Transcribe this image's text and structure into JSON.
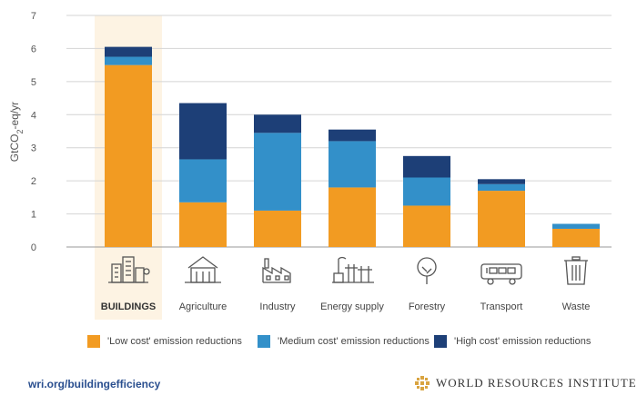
{
  "chart_data": {
    "type": "bar",
    "stacked": true,
    "ylabel_parts": [
      "GtCO",
      "2",
      "-eq/yr"
    ],
    "ylim": [
      0,
      7
    ],
    "yticks": [
      0,
      1,
      2,
      3,
      4,
      5,
      6,
      7
    ],
    "categories": [
      "BUILDINGS",
      "Agriculture",
      "Industry",
      "Energy supply",
      "Forestry",
      "Transport",
      "Waste"
    ],
    "highlighted_category": "BUILDINGS",
    "category_icons": [
      "buildings-icon",
      "agriculture-icon",
      "industry-icon",
      "energy-supply-icon",
      "forestry-icon",
      "transport-icon",
      "waste-icon"
    ],
    "series": [
      {
        "name": "'Low cost' emission reductions",
        "color": "#f29b22",
        "values": [
          5.5,
          1.35,
          1.1,
          1.8,
          1.25,
          1.7,
          0.55
        ]
      },
      {
        "name": "'Medium cost' emission reductions",
        "color": "#3390c9",
        "values": [
          0.25,
          1.3,
          2.35,
          1.4,
          0.85,
          0.2,
          0.15
        ]
      },
      {
        "name": "'High cost' emission reductions",
        "color": "#1d3f77",
        "values": [
          0.3,
          1.7,
          0.55,
          0.35,
          0.65,
          0.15,
          0.0
        ]
      }
    ],
    "highlight_color": "#fdf3e3",
    "grid": true
  },
  "footer": {
    "url": "wri.org/buildingefficiency",
    "org": "WORLD RESOURCES INSTITUTE"
  }
}
